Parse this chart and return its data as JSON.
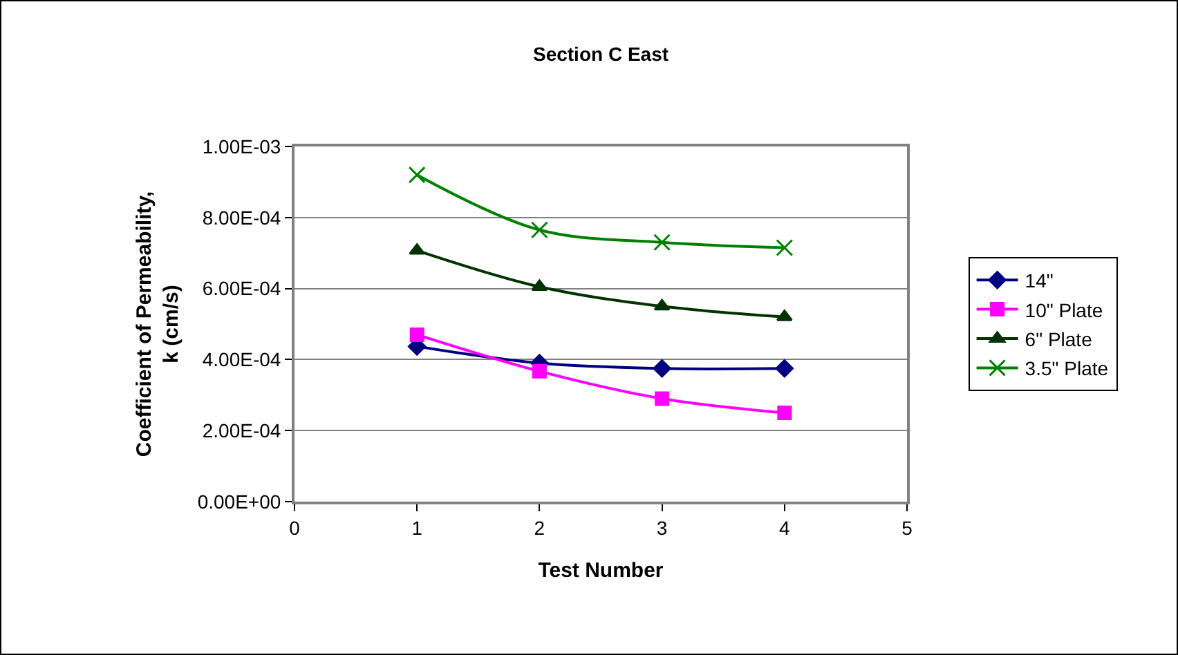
{
  "chart_data": {
    "type": "line",
    "title": "Section C East",
    "xlabel": "Test Number",
    "ylabel": "Coefficient of Permeability, k (cm/s)",
    "x": [
      1,
      2,
      3,
      4
    ],
    "series": [
      {
        "name": "14\"",
        "color": "#000080",
        "marker": "diamond",
        "values": [
          0.000437,
          0.00039,
          0.000375,
          0.000375
        ]
      },
      {
        "name": "10\" Plate",
        "color": "#ff00ff",
        "marker": "square",
        "values": [
          0.00047,
          0.000367,
          0.00029,
          0.00025
        ]
      },
      {
        "name": "6\" Plate",
        "color": "#003300",
        "marker": "triangle",
        "values": [
          0.000707,
          0.000605,
          0.00055,
          0.00052
        ]
      },
      {
        "name": "3.5\" Plate",
        "color": "#008000",
        "marker": "cross",
        "values": [
          0.00092,
          0.000765,
          0.00073,
          0.000715
        ]
      }
    ],
    "xlim": [
      0,
      5
    ],
    "xticks": [
      0,
      1,
      2,
      3,
      4,
      5
    ],
    "ylim": [
      0,
      0.001
    ],
    "yticks": [
      {
        "value": 0,
        "label": "0.00E+00"
      },
      {
        "value": 0.0002,
        "label": "2.00E-04"
      },
      {
        "value": 0.0004,
        "label": "4.00E-04"
      },
      {
        "value": 0.0006,
        "label": "6.00E-04"
      },
      {
        "value": 0.0008,
        "label": "8.00E-04"
      },
      {
        "value": 0.001,
        "label": "1.00E-03"
      }
    ],
    "grid": "y",
    "legend": "right"
  }
}
